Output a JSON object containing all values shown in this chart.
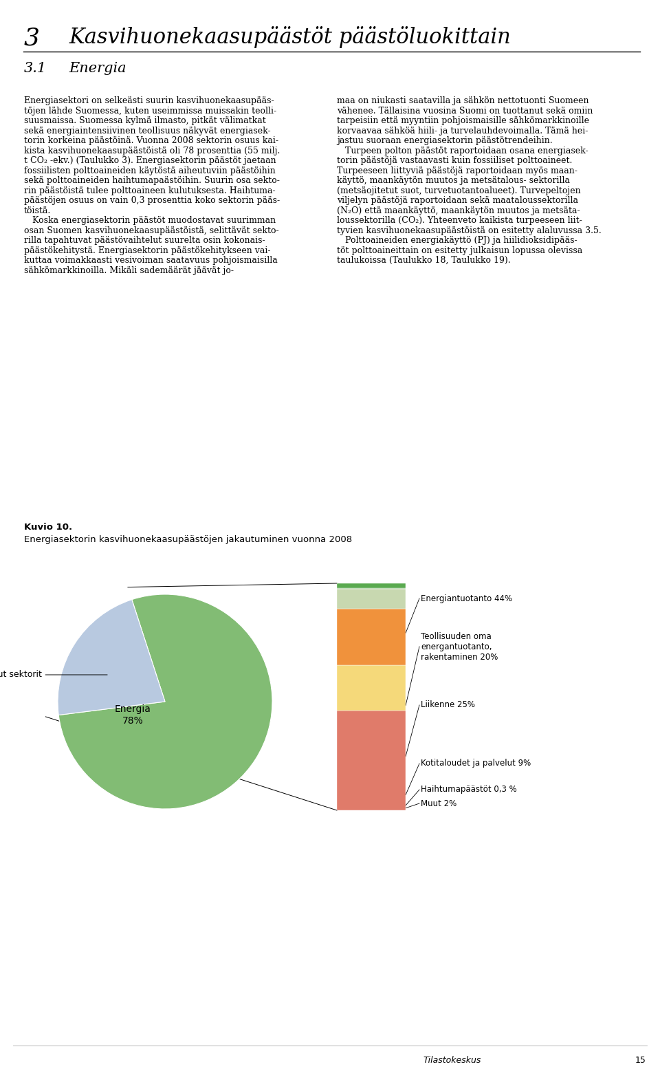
{
  "title_chapter": "3",
  "title_text": "Kasvihuonekaasupäästöt päästöluokittain",
  "subtitle_num": "3.1",
  "subtitle_text": "Energia",
  "figure_label": "Kuvio 10.",
  "figure_caption": "Energiasektorin kasvihuonekaasupäästöjen jakautuminen vuonna 2008",
  "footer_italic": "Tilastokeskus",
  "footer_page": "15",
  "pie_energia_pct": 78,
  "pie_muut_pct": 22,
  "pie_energia_color": "#82bc74",
  "pie_muut_color": "#b8c9e0",
  "pie_startangle": 108,
  "bar_segments": [
    {
      "label": "Energiantuotanto 44%",
      "value": 44,
      "color": "#e07b6a"
    },
    {
      "label": "Teollisuuden oma\nenergantuotanto,\nrakentaminen 20%",
      "value": 20,
      "color": "#f5d97a"
    },
    {
      "label": "Liikenne 25%",
      "value": 25,
      "color": "#f0923c"
    },
    {
      "label": "Kotitaloudet ja palvelut 9%",
      "value": 9,
      "color": "#c8d8b0"
    },
    {
      "label": "Haihtumapaästöt 0,3 %",
      "value": 0.3,
      "color": "#82bc74"
    },
    {
      "label": "Muut 2%",
      "value": 2,
      "color": "#5aaa50"
    }
  ],
  "left_col_lines": [
    "Energiasektori on selkeästi suurin kasvihuonekaasupääs-",
    "töjen lähde Suomessa, kuten useimmissa muissakin teolli-",
    "suusmaissa. Suomessa kylmä ilmasto, pitkät välimatkat",
    "sekä energiaintensiivinen teollisuus näkyvät energiasek-",
    "torin korkeina päästöinä. Vuonna 2008 sektorin osuus kai-",
    "kista kasvihuonekaasupäästöistä oli 78 prosenttia (55 milj.",
    "t CO₂ -ekv.) (Taulukko 3). Energiasektorin päästöt jaetaan",
    "fossiilisten polttoaineiden käytöstä aiheutuviin päästöihin",
    "sekä polttoaineiden haihtumapaästöihin. Suurin osa sekto-",
    "rin päästöistä tulee polttoaineen kulutuksesta. Haihtuma-",
    "päästöjen osuus on vain 0,3 prosenttia koko sektorin pääs-",
    "töistä.",
    "   Koska energiasektorin päästöt muodostavat suurimman",
    "osan Suomen kasvihuonekaasupäästöistä, selittävät sekto-",
    "rilla tapahtuvat päästövaihtelut suurelta osin kokonais-",
    "päästökehitystä. Energiasektorin päästökehitykseen vai-",
    "kuttaa voimakkaasti vesivoiman saatavuus pohjoismaisilla",
    "sähkömarkkinoilla. Mikäli sademäärät jäävät jo-"
  ],
  "right_col_lines": [
    "maa on niukasti saatavilla ja sähkön nettotuonti Suomeen",
    "vähenee. Tällaisina vuosina Suomi on tuottanut sekä omiin",
    "tarpeisiin että myyntiin pohjoismaisille sähkömarkkinoille",
    "korvaavaa sähköä hiili- ja turvelauhdevoimalla. Tämä hei-",
    "jastuu suoraan energiasektorin päästötrendeihin.",
    "   Turpeen polton päästöt raportoidaan osana energiasek-",
    "torin päästöjä vastaavasti kuin fossiiliset polttoaineet.",
    "Turpeeseen liittyviä päästöjä raportoidaan myös maan-",
    "käyttö, maankäytön muutos ja metsätalous- sektorilla",
    "(metsäojitetut suot, turvetuotantoalueet). Turvepeltojen",
    "viljelyn päästöjä raportoidaan sekä maataloussektorilla",
    "(N₂O) että maankäyttö, maankäytön muutos ja metsäta-",
    "loussektorilla (CO₂). Yhteenveto kaikista turpeeseen liit-",
    "tyvien kasvihuonekaasupäästöistä on esitetty alaluvussa 3.5.",
    "   Polttoaineiden energiakäyttö (PJ) ja hiilidioksidipääs-",
    "töt polttoaineittain on esitetty julkaisun lopussa olevissa",
    "taulukoissa (Taulukko 18, Taulukko 19)."
  ]
}
